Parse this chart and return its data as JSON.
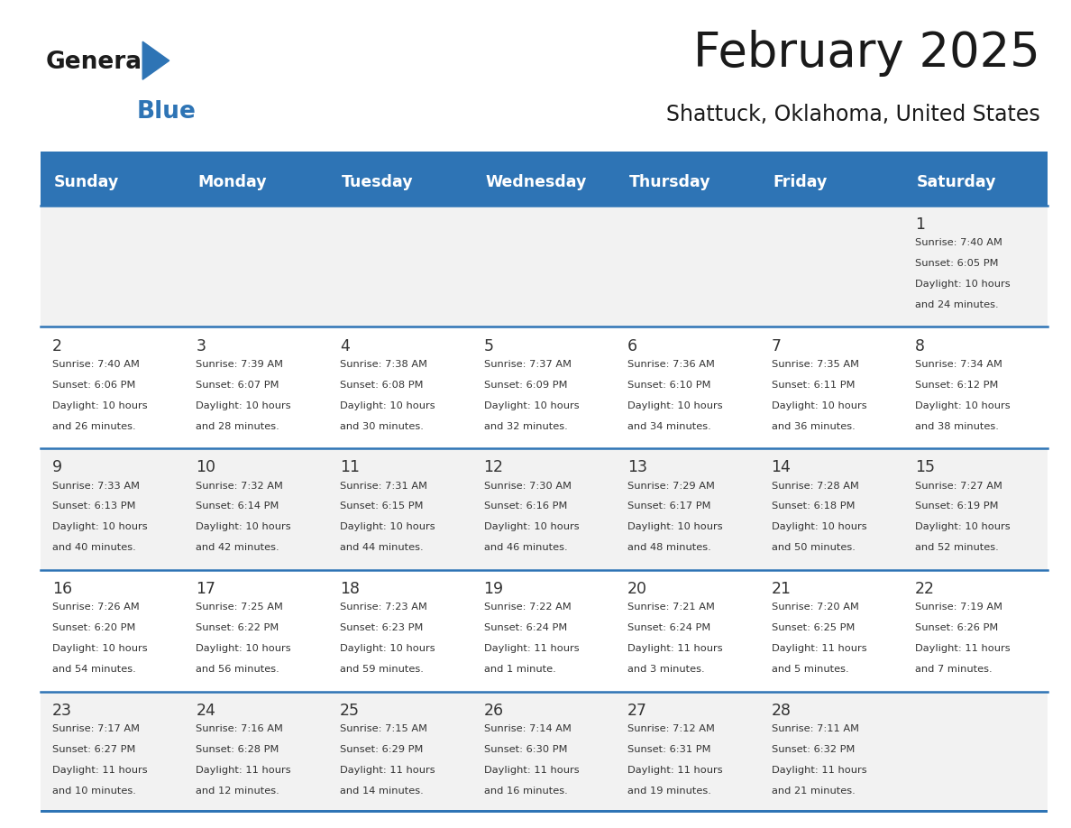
{
  "title": "February 2025",
  "subtitle": "Shattuck, Oklahoma, United States",
  "header_bg": "#2E74B5",
  "header_text_color": "#FFFFFF",
  "cell_border_color": "#2E74B5",
  "day_names": [
    "Sunday",
    "Monday",
    "Tuesday",
    "Wednesday",
    "Thursday",
    "Friday",
    "Saturday"
  ],
  "title_color": "#1a1a1a",
  "subtitle_color": "#1a1a1a",
  "cell_text_color": "#333333",
  "day_num_color": "#333333",
  "row_colors": [
    "#FFFFFF",
    "#FFFFFF",
    "#FFFFFF",
    "#FFFFFF",
    "#FFFFFF"
  ],
  "alt_row_bg": "#F2F2F2",
  "white_bg": "#FFFFFF",
  "calendar_data": [
    [
      null,
      null,
      null,
      null,
      null,
      null,
      {
        "day": 1,
        "sunrise": "7:40 AM",
        "sunset": "6:05 PM",
        "daylight_line1": "Daylight: 10 hours",
        "daylight_line2": "and 24 minutes."
      }
    ],
    [
      {
        "day": 2,
        "sunrise": "7:40 AM",
        "sunset": "6:06 PM",
        "daylight_line1": "Daylight: 10 hours",
        "daylight_line2": "and 26 minutes."
      },
      {
        "day": 3,
        "sunrise": "7:39 AM",
        "sunset": "6:07 PM",
        "daylight_line1": "Daylight: 10 hours",
        "daylight_line2": "and 28 minutes."
      },
      {
        "day": 4,
        "sunrise": "7:38 AM",
        "sunset": "6:08 PM",
        "daylight_line1": "Daylight: 10 hours",
        "daylight_line2": "and 30 minutes."
      },
      {
        "day": 5,
        "sunrise": "7:37 AM",
        "sunset": "6:09 PM",
        "daylight_line1": "Daylight: 10 hours",
        "daylight_line2": "and 32 minutes."
      },
      {
        "day": 6,
        "sunrise": "7:36 AM",
        "sunset": "6:10 PM",
        "daylight_line1": "Daylight: 10 hours",
        "daylight_line2": "and 34 minutes."
      },
      {
        "day": 7,
        "sunrise": "7:35 AM",
        "sunset": "6:11 PM",
        "daylight_line1": "Daylight: 10 hours",
        "daylight_line2": "and 36 minutes."
      },
      {
        "day": 8,
        "sunrise": "7:34 AM",
        "sunset": "6:12 PM",
        "daylight_line1": "Daylight: 10 hours",
        "daylight_line2": "and 38 minutes."
      }
    ],
    [
      {
        "day": 9,
        "sunrise": "7:33 AM",
        "sunset": "6:13 PM",
        "daylight_line1": "Daylight: 10 hours",
        "daylight_line2": "and 40 minutes."
      },
      {
        "day": 10,
        "sunrise": "7:32 AM",
        "sunset": "6:14 PM",
        "daylight_line1": "Daylight: 10 hours",
        "daylight_line2": "and 42 minutes."
      },
      {
        "day": 11,
        "sunrise": "7:31 AM",
        "sunset": "6:15 PM",
        "daylight_line1": "Daylight: 10 hours",
        "daylight_line2": "and 44 minutes."
      },
      {
        "day": 12,
        "sunrise": "7:30 AM",
        "sunset": "6:16 PM",
        "daylight_line1": "Daylight: 10 hours",
        "daylight_line2": "and 46 minutes."
      },
      {
        "day": 13,
        "sunrise": "7:29 AM",
        "sunset": "6:17 PM",
        "daylight_line1": "Daylight: 10 hours",
        "daylight_line2": "and 48 minutes."
      },
      {
        "day": 14,
        "sunrise": "7:28 AM",
        "sunset": "6:18 PM",
        "daylight_line1": "Daylight: 10 hours",
        "daylight_line2": "and 50 minutes."
      },
      {
        "day": 15,
        "sunrise": "7:27 AM",
        "sunset": "6:19 PM",
        "daylight_line1": "Daylight: 10 hours",
        "daylight_line2": "and 52 minutes."
      }
    ],
    [
      {
        "day": 16,
        "sunrise": "7:26 AM",
        "sunset": "6:20 PM",
        "daylight_line1": "Daylight: 10 hours",
        "daylight_line2": "and 54 minutes."
      },
      {
        "day": 17,
        "sunrise": "7:25 AM",
        "sunset": "6:22 PM",
        "daylight_line1": "Daylight: 10 hours",
        "daylight_line2": "and 56 minutes."
      },
      {
        "day": 18,
        "sunrise": "7:23 AM",
        "sunset": "6:23 PM",
        "daylight_line1": "Daylight: 10 hours",
        "daylight_line2": "and 59 minutes."
      },
      {
        "day": 19,
        "sunrise": "7:22 AM",
        "sunset": "6:24 PM",
        "daylight_line1": "Daylight: 11 hours",
        "daylight_line2": "and 1 minute."
      },
      {
        "day": 20,
        "sunrise": "7:21 AM",
        "sunset": "6:24 PM",
        "daylight_line1": "Daylight: 11 hours",
        "daylight_line2": "and 3 minutes."
      },
      {
        "day": 21,
        "sunrise": "7:20 AM",
        "sunset": "6:25 PM",
        "daylight_line1": "Daylight: 11 hours",
        "daylight_line2": "and 5 minutes."
      },
      {
        "day": 22,
        "sunrise": "7:19 AM",
        "sunset": "6:26 PM",
        "daylight_line1": "Daylight: 11 hours",
        "daylight_line2": "and 7 minutes."
      }
    ],
    [
      {
        "day": 23,
        "sunrise": "7:17 AM",
        "sunset": "6:27 PM",
        "daylight_line1": "Daylight: 11 hours",
        "daylight_line2": "and 10 minutes."
      },
      {
        "day": 24,
        "sunrise": "7:16 AM",
        "sunset": "6:28 PM",
        "daylight_line1": "Daylight: 11 hours",
        "daylight_line2": "and 12 minutes."
      },
      {
        "day": 25,
        "sunrise": "7:15 AM",
        "sunset": "6:29 PM",
        "daylight_line1": "Daylight: 11 hours",
        "daylight_line2": "and 14 minutes."
      },
      {
        "day": 26,
        "sunrise": "7:14 AM",
        "sunset": "6:30 PM",
        "daylight_line1": "Daylight: 11 hours",
        "daylight_line2": "and 16 minutes."
      },
      {
        "day": 27,
        "sunrise": "7:12 AM",
        "sunset": "6:31 PM",
        "daylight_line1": "Daylight: 11 hours",
        "daylight_line2": "and 19 minutes."
      },
      {
        "day": 28,
        "sunrise": "7:11 AM",
        "sunset": "6:32 PM",
        "daylight_line1": "Daylight: 11 hours",
        "daylight_line2": "and 21 minutes."
      },
      null
    ]
  ]
}
